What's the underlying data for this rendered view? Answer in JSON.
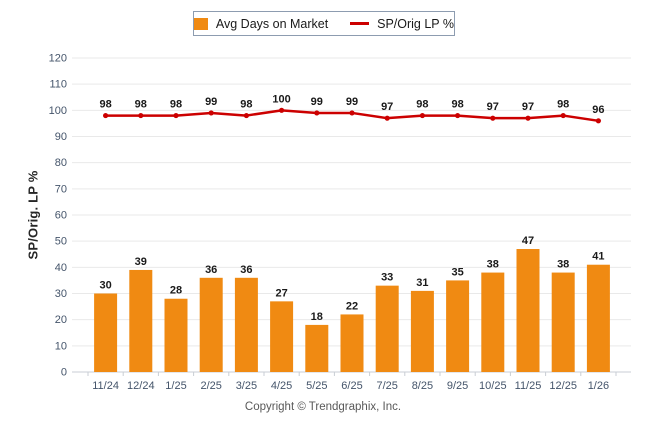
{
  "legend": {
    "items": [
      {
        "label": "Avg Days on Market",
        "swatch": "orange-rect"
      },
      {
        "label": "SP/Orig LP %",
        "swatch": "red-line"
      }
    ]
  },
  "footer": {
    "text": "Copyright © Trendgraphix, Inc."
  },
  "colors": {
    "bar": "#F08A12",
    "line": "#CC0000",
    "grid": "#E9E9E9",
    "baseline": "#C9CED4",
    "tick_text": "#44546A",
    "value_text": "#1A1A1A",
    "footer_text": "#595959",
    "legend_border": "#8D9CB0"
  },
  "chart_data": {
    "type": "bar+line",
    "categories": [
      "11/24",
      "12/24",
      "1/25",
      "2/25",
      "3/25",
      "4/25",
      "5/25",
      "6/25",
      "7/25",
      "8/25",
      "9/25",
      "10/25",
      "11/25",
      "12/25",
      "1/26"
    ],
    "series": [
      {
        "name": "Avg Days on Market",
        "type": "bar",
        "color": "#F08A12",
        "values": [
          30,
          39,
          28,
          36,
          36,
          27,
          18,
          22,
          33,
          31,
          35,
          38,
          47,
          38,
          41
        ]
      },
      {
        "name": "SP/Orig LP %",
        "type": "line",
        "color": "#CC0000",
        "values": [
          98,
          98,
          98,
          99,
          98,
          100,
          99,
          99,
          97,
          98,
          98,
          97,
          97,
          98,
          96
        ]
      }
    ],
    "title": "",
    "xlabel": "",
    "ylabel": "SP/Orig. LP %",
    "ylim": [
      0,
      120
    ],
    "ytick_step": 10,
    "grid": true,
    "legend_position": "top-center",
    "data_labels": true
  }
}
